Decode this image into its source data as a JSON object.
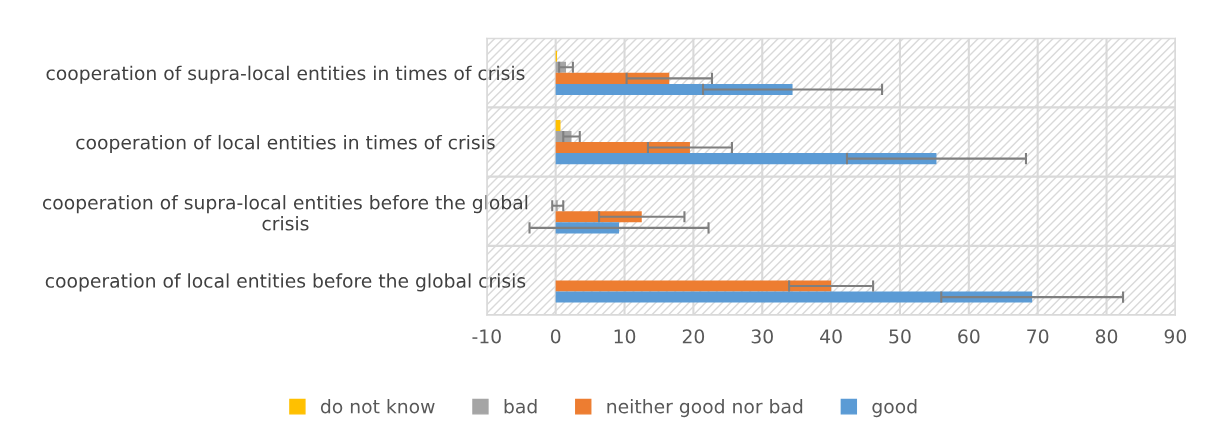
{
  "chart_data": {
    "type": "bar",
    "orientation": "horizontal",
    "categories": [
      "cooperation of supra-local entities in times of crisis",
      "cooperation of local entities in times of crisis",
      "cooperation of supra-local entities before the global\ncrisis",
      "cooperation of local entities before the global crisis"
    ],
    "series": [
      {
        "name": "do not know",
        "color": "#ffc000",
        "values": [
          0.2,
          0.7,
          0,
          0
        ],
        "errors": [
          null,
          null,
          null,
          null
        ]
      },
      {
        "name": "bad",
        "color": "#a5a5a5",
        "values": [
          1.5,
          2.3,
          0.3,
          0
        ],
        "errors": [
          1.0,
          1.2,
          0.8,
          null
        ]
      },
      {
        "name": "neither good nor bad",
        "color": "#ed7d31",
        "values": [
          16.5,
          19.5,
          12.5,
          40
        ],
        "errors": [
          6.2,
          6.1,
          6.2,
          6.1
        ]
      },
      {
        "name": "good",
        "color": "#5b9bd5",
        "values": [
          34.4,
          55.3,
          9.2,
          69.2
        ],
        "errors": [
          13,
          13,
          13,
          13.2
        ]
      }
    ],
    "xlim": [
      -10,
      90
    ],
    "xticks": [
      -10,
      0,
      10,
      20,
      30,
      40,
      50,
      60,
      70,
      80,
      90
    ],
    "grid": true,
    "legend": "bottom"
  }
}
